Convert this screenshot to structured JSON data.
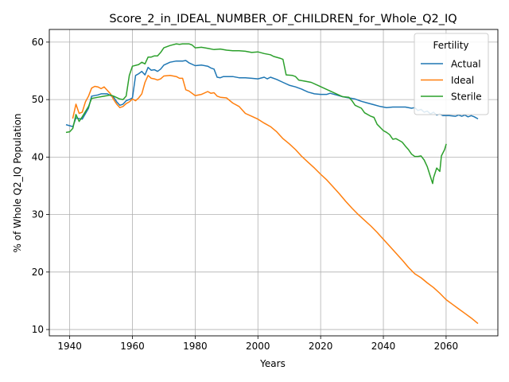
{
  "chart_data": {
    "type": "line",
    "title": "Score_2_in_IDEAL_NUMBER_OF_CHILDREN_for_Whole_Q2_IQ",
    "xlabel": "Years",
    "ylabel": "% of Whole Q2_IQ Population",
    "xlim": [
      1933.5,
      2076.5
    ],
    "ylim": [
      8.9,
      62.2
    ],
    "xticks": [
      1940,
      1960,
      1980,
      2000,
      2020,
      2040,
      2060
    ],
    "yticks": [
      10,
      20,
      30,
      40,
      50,
      60
    ],
    "grid": true,
    "legend": {
      "title": "Fertility",
      "placement": "top-right"
    },
    "series": [
      {
        "name": "Actual",
        "color": "#1f77b4",
        "points": [
          [
            1939,
            45.6
          ],
          [
            1941,
            45.3
          ],
          [
            1942,
            46.8
          ],
          [
            1944,
            46.6
          ],
          [
            1946,
            48.5
          ],
          [
            1947,
            50.6
          ],
          [
            1949,
            50.8
          ],
          [
            1950,
            51.0
          ],
          [
            1952,
            51.0
          ],
          [
            1954,
            50.4
          ],
          [
            1955,
            49.6
          ],
          [
            1956,
            49.0
          ],
          [
            1957,
            49.2
          ],
          [
            1958,
            49.8
          ],
          [
            1959,
            50.0
          ],
          [
            1960,
            50.3
          ],
          [
            1961,
            54.2
          ],
          [
            1962,
            54.5
          ],
          [
            1963,
            54.9
          ],
          [
            1964,
            54.3
          ],
          [
            1965,
            55.6
          ],
          [
            1966,
            55.1
          ],
          [
            1967,
            55.2
          ],
          [
            1968,
            54.9
          ],
          [
            1969,
            55.3
          ],
          [
            1970,
            56.0
          ],
          [
            1972,
            56.5
          ],
          [
            1974,
            56.7
          ],
          [
            1976,
            56.7
          ],
          [
            1977,
            56.8
          ],
          [
            1978,
            56.4
          ],
          [
            1980,
            55.9
          ],
          [
            1982,
            56.0
          ],
          [
            1984,
            55.8
          ],
          [
            1985,
            55.5
          ],
          [
            1986,
            55.3
          ],
          [
            1987,
            53.9
          ],
          [
            1988,
            53.8
          ],
          [
            1989,
            54.0
          ],
          [
            1992,
            54.0
          ],
          [
            1994,
            53.8
          ],
          [
            1996,
            53.8
          ],
          [
            1998,
            53.7
          ],
          [
            2000,
            53.6
          ],
          [
            2002,
            53.9
          ],
          [
            2003,
            53.6
          ],
          [
            2004,
            53.9
          ],
          [
            2006,
            53.5
          ],
          [
            2008,
            53.0
          ],
          [
            2010,
            52.5
          ],
          [
            2012,
            52.2
          ],
          [
            2014,
            51.8
          ],
          [
            2016,
            51.3
          ],
          [
            2018,
            51.0
          ],
          [
            2020,
            50.9
          ],
          [
            2022,
            50.9
          ],
          [
            2023,
            51.1
          ],
          [
            2025,
            50.8
          ],
          [
            2027,
            50.5
          ],
          [
            2029,
            50.3
          ],
          [
            2031,
            50.1
          ],
          [
            2033,
            49.7
          ],
          [
            2035,
            49.4
          ],
          [
            2037,
            49.1
          ],
          [
            2039,
            48.8
          ],
          [
            2041,
            48.6
          ],
          [
            2043,
            48.7
          ],
          [
            2045,
            48.7
          ],
          [
            2047,
            48.7
          ],
          [
            2049,
            48.5
          ],
          [
            2050,
            48.6
          ],
          [
            2051,
            48.1
          ],
          [
            2052,
            48.3
          ],
          [
            2053,
            47.8
          ],
          [
            2054,
            48.0
          ],
          [
            2055,
            47.5
          ],
          [
            2056,
            47.8
          ],
          [
            2057,
            47.3
          ],
          [
            2058,
            47.5
          ],
          [
            2059,
            47.2
          ],
          [
            2061,
            47.2
          ],
          [
            2063,
            47.1
          ],
          [
            2064,
            47.3
          ],
          [
            2065,
            47.1
          ],
          [
            2066,
            47.3
          ],
          [
            2067,
            47.0
          ],
          [
            2068,
            47.2
          ],
          [
            2069,
            47.0
          ],
          [
            2070,
            46.7
          ]
        ]
      },
      {
        "name": "Ideal",
        "color": "#ff7f0e",
        "points": [
          [
            1941,
            46.8
          ],
          [
            1942,
            49.2
          ],
          [
            1943,
            47.6
          ],
          [
            1944,
            47.8
          ],
          [
            1945,
            49.6
          ],
          [
            1946,
            50.6
          ],
          [
            1947,
            52.0
          ],
          [
            1948,
            52.3
          ],
          [
            1949,
            52.2
          ],
          [
            1950,
            51.9
          ],
          [
            1951,
            52.2
          ],
          [
            1952,
            51.6
          ],
          [
            1953,
            51.0
          ],
          [
            1954,
            50.0
          ],
          [
            1955,
            49.2
          ],
          [
            1956,
            48.6
          ],
          [
            1957,
            48.8
          ],
          [
            1958,
            49.3
          ],
          [
            1959,
            49.6
          ],
          [
            1960,
            50.1
          ],
          [
            1961,
            49.8
          ],
          [
            1962,
            50.3
          ],
          [
            1963,
            51.0
          ],
          [
            1964,
            53.0
          ],
          [
            1965,
            54.2
          ],
          [
            1966,
            53.7
          ],
          [
            1967,
            53.6
          ],
          [
            1968,
            53.4
          ],
          [
            1969,
            53.6
          ],
          [
            1970,
            54.1
          ],
          [
            1972,
            54.2
          ],
          [
            1974,
            54.0
          ],
          [
            1975,
            53.7
          ],
          [
            1976,
            53.7
          ],
          [
            1977,
            51.7
          ],
          [
            1978,
            51.5
          ],
          [
            1980,
            50.7
          ],
          [
            1982,
            50.9
          ],
          [
            1984,
            51.4
          ],
          [
            1985,
            51.1
          ],
          [
            1986,
            51.2
          ],
          [
            1987,
            50.6
          ],
          [
            1988,
            50.4
          ],
          [
            1990,
            50.3
          ],
          [
            1992,
            49.4
          ],
          [
            1994,
            48.8
          ],
          [
            1996,
            47.6
          ],
          [
            1998,
            47.1
          ],
          [
            2000,
            46.6
          ],
          [
            2002,
            45.9
          ],
          [
            2004,
            45.3
          ],
          [
            2006,
            44.4
          ],
          [
            2008,
            43.2
          ],
          [
            2010,
            42.3
          ],
          [
            2012,
            41.3
          ],
          [
            2014,
            40.1
          ],
          [
            2016,
            39.1
          ],
          [
            2018,
            38.1
          ],
          [
            2020,
            37.0
          ],
          [
            2022,
            36.0
          ],
          [
            2024,
            34.8
          ],
          [
            2026,
            33.6
          ],
          [
            2028,
            32.3
          ],
          [
            2030,
            31.1
          ],
          [
            2032,
            30.0
          ],
          [
            2034,
            29.0
          ],
          [
            2036,
            28.0
          ],
          [
            2038,
            26.9
          ],
          [
            2040,
            25.7
          ],
          [
            2042,
            24.5
          ],
          [
            2044,
            23.3
          ],
          [
            2046,
            22.1
          ],
          [
            2048,
            20.8
          ],
          [
            2050,
            19.7
          ],
          [
            2052,
            19.0
          ],
          [
            2054,
            18.1
          ],
          [
            2056,
            17.3
          ],
          [
            2058,
            16.3
          ],
          [
            2060,
            15.2
          ],
          [
            2062,
            14.4
          ],
          [
            2064,
            13.6
          ],
          [
            2066,
            12.8
          ],
          [
            2068,
            12.0
          ],
          [
            2070,
            11.1
          ]
        ]
      },
      {
        "name": "Sterile",
        "color": "#2ca02c",
        "points": [
          [
            1939,
            44.3
          ],
          [
            1940,
            44.4
          ],
          [
            1941,
            45.0
          ],
          [
            1942,
            47.4
          ],
          [
            1943,
            46.2
          ],
          [
            1944,
            47.0
          ],
          [
            1946,
            48.8
          ],
          [
            1947,
            50.2
          ],
          [
            1949,
            50.4
          ],
          [
            1950,
            50.5
          ],
          [
            1952,
            50.7
          ],
          [
            1953,
            50.8
          ],
          [
            1954,
            50.6
          ],
          [
            1956,
            50.1
          ],
          [
            1957,
            50.0
          ],
          [
            1958,
            50.6
          ],
          [
            1959,
            54.2
          ],
          [
            1960,
            55.8
          ],
          [
            1962,
            56.1
          ],
          [
            1963,
            56.5
          ],
          [
            1964,
            56.2
          ],
          [
            1965,
            57.4
          ],
          [
            1966,
            57.4
          ],
          [
            1967,
            57.6
          ],
          [
            1968,
            57.6
          ],
          [
            1969,
            58.2
          ],
          [
            1970,
            59.0
          ],
          [
            1972,
            59.4
          ],
          [
            1974,
            59.7
          ],
          [
            1975,
            59.6
          ],
          [
            1976,
            59.7
          ],
          [
            1978,
            59.7
          ],
          [
            1979,
            59.5
          ],
          [
            1980,
            59.0
          ],
          [
            1982,
            59.1
          ],
          [
            1984,
            58.9
          ],
          [
            1986,
            58.7
          ],
          [
            1988,
            58.8
          ],
          [
            1990,
            58.6
          ],
          [
            1992,
            58.5
          ],
          [
            1994,
            58.5
          ],
          [
            1996,
            58.4
          ],
          [
            1998,
            58.2
          ],
          [
            2000,
            58.3
          ],
          [
            2002,
            58.0
          ],
          [
            2004,
            57.8
          ],
          [
            2005,
            57.5
          ],
          [
            2007,
            57.2
          ],
          [
            2008,
            57.0
          ],
          [
            2009,
            54.3
          ],
          [
            2011,
            54.2
          ],
          [
            2012,
            54.0
          ],
          [
            2013,
            53.4
          ],
          [
            2015,
            53.2
          ],
          [
            2017,
            53.0
          ],
          [
            2019,
            52.5
          ],
          [
            2021,
            52.0
          ],
          [
            2023,
            51.5
          ],
          [
            2025,
            51.0
          ],
          [
            2027,
            50.5
          ],
          [
            2029,
            50.4
          ],
          [
            2030,
            49.8
          ],
          [
            2031,
            49.0
          ],
          [
            2033,
            48.5
          ],
          [
            2034,
            47.7
          ],
          [
            2036,
            47.1
          ],
          [
            2037,
            46.9
          ],
          [
            2038,
            45.7
          ],
          [
            2040,
            44.6
          ],
          [
            2041,
            44.3
          ],
          [
            2042,
            43.9
          ],
          [
            2043,
            43.1
          ],
          [
            2044,
            43.2
          ],
          [
            2045,
            42.9
          ],
          [
            2046,
            42.6
          ],
          [
            2047,
            41.9
          ],
          [
            2048,
            41.3
          ],
          [
            2049,
            40.5
          ],
          [
            2050,
            40.1
          ],
          [
            2051,
            40.1
          ],
          [
            2052,
            40.2
          ],
          [
            2053,
            39.5
          ],
          [
            2054,
            38.3
          ],
          [
            2055,
            36.6
          ],
          [
            2055.7,
            35.4
          ],
          [
            2056,
            36.4
          ],
          [
            2057,
            38.1
          ],
          [
            2058,
            37.5
          ],
          [
            2058.5,
            40.2
          ],
          [
            2059.5,
            41.3
          ],
          [
            2060,
            42.2
          ]
        ]
      }
    ]
  }
}
